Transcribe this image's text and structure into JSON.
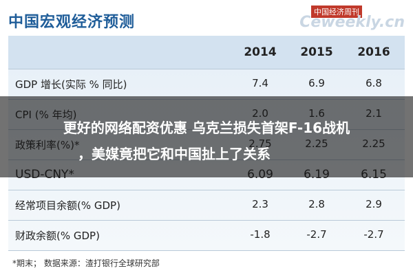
{
  "header": {
    "title": "中国宏观经济预测",
    "watermark_top": "中国经济周刊",
    "watermark_site": "Ceweekly.cn"
  },
  "table": {
    "years": [
      "2014",
      "2015",
      "2016"
    ],
    "rows": [
      {
        "label": "GDP 增长(实际 % 同比)",
        "values": [
          "7.4",
          "6.9",
          "6.8"
        ]
      },
      {
        "label": "CPI (% 年均)",
        "values": [
          "2.0",
          "1.6",
          "2.1"
        ]
      },
      {
        "label": "政策利率(%)*",
        "values": [
          "2.75",
          "2.25",
          "2.25"
        ]
      },
      {
        "label": "USD-CNY*",
        "values": [
          "6.09",
          "6.19",
          "6.15"
        ]
      },
      {
        "label": "经常项目余额(% GDP)",
        "values": [
          "2.3",
          "2.8",
          "2.9"
        ]
      },
      {
        "label": "财政余额(% GDP)",
        "values": [
          "-1.8",
          "-2.7",
          "-2.7"
        ]
      }
    ]
  },
  "footnote": "*期末；   数据来源：渣打银行全球研究部",
  "overlay": {
    "lines": [
      "更好的网络配资优惠 乌克兰损失首架F-16战机",
      "，美媒竟把它和中国扯上了关系"
    ]
  }
}
